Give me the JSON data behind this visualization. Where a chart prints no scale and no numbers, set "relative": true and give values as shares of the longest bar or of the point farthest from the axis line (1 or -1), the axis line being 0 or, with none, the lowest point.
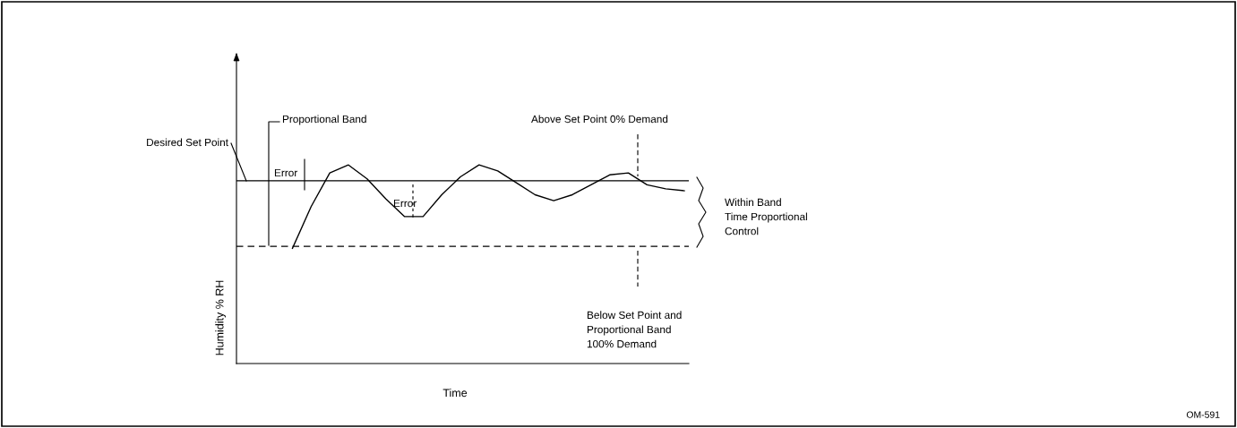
{
  "chart_data": {
    "type": "line",
    "relative": true,
    "xlabel": "Time",
    "ylabel": "Humidity % RH",
    "categories": [
      null,
      null,
      null,
      null,
      null,
      null,
      null,
      null,
      null,
      null,
      null,
      null,
      null,
      null,
      null,
      null,
      null,
      null,
      null,
      null,
      null,
      null,
      null,
      null,
      null
    ],
    "series": [
      {
        "color": "#000000",
        "values": [
          null,
          null,
          null,
          0.58,
          0.79,
          0.96,
          1.0,
          0.93,
          0.83,
          0.74,
          0.74,
          0.85,
          0.94,
          1.0,
          0.97,
          0.91,
          0.85,
          0.82,
          0.85,
          0.9,
          0.95,
          0.96,
          0.9,
          0.88,
          0.87
        ]
      }
    ],
    "ref_lines": [
      {
        "axis": "y",
        "value": 0.92,
        "color": "#000000",
        "line_style": "solid"
      },
      {
        "axis": "y",
        "value": 0.59,
        "color": "#000000",
        "line_style": "dashed"
      }
    ],
    "annotations": [
      "Desired Set Point",
      "Proportional Band",
      "Error",
      "Error",
      "Above Set Point 0% Demand",
      "Within Band\nTime Proportional\nControl",
      "Below Set Point and\nProportional Band\n100% Demand",
      "OM-591"
    ],
    "marker": "none",
    "line_style": "solid",
    "legend": false
  }
}
